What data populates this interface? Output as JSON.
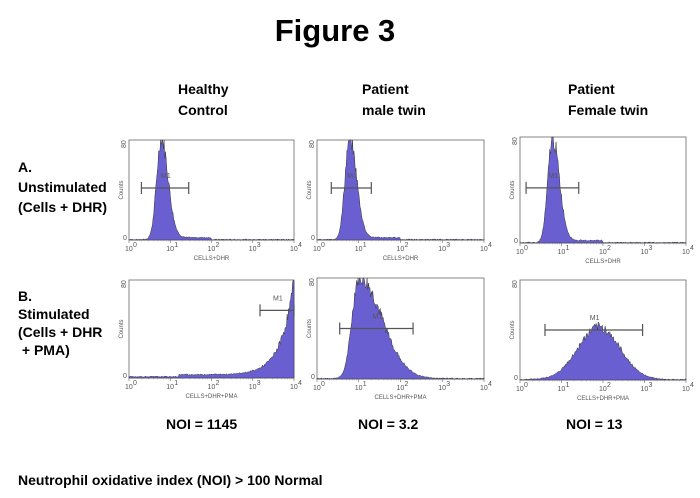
{
  "title": "Figure 3",
  "columns": [
    {
      "line1": "Healthy",
      "line2": "Control"
    },
    {
      "line1": "Patient",
      "line2": "male twin"
    },
    {
      "line1": "Patient",
      "line2": "Female twin"
    }
  ],
  "rows": [
    {
      "letter": "A.",
      "line1": "Unstimulated",
      "line2": "(Cells + DHR)",
      "line3": ""
    },
    {
      "letter": "B.",
      "line1": "Stimulated",
      "line2": "(Cells + DHR",
      "line3": " + PMA)"
    }
  ],
  "noi": [
    "NOI = 1145",
    "NOI = 3.2",
    "NOI = 13"
  ],
  "footer": "Neutrophil oxidative index (NOI) > 100 Normal",
  "colors": {
    "fill": "#6a5fd0",
    "outline": "#333333",
    "marker": "#555555"
  },
  "chart_data": [
    {
      "type": "area",
      "panel": "A / Healthy Control",
      "xlabel": "CELLS+DHR",
      "ylabel": "Counts",
      "xscale": "log",
      "xlim": [
        1,
        10000
      ],
      "ylim": [
        0,
        80
      ],
      "x_ticks": [
        "10^0",
        "10^1",
        "10^2",
        "10^3",
        "10^4"
      ],
      "y_ticks": [
        "0",
        "80"
      ],
      "peak_x": 6,
      "peak_count": 80,
      "marker": {
        "label": "M1",
        "range": [
          2,
          28
        ]
      }
    },
    {
      "type": "area",
      "panel": "A / Patient male twin",
      "xlabel": "CELLS+DHR",
      "ylabel": "Counts",
      "xscale": "log",
      "xlim": [
        1,
        10000
      ],
      "ylim": [
        0,
        80
      ],
      "x_ticks": [
        "10^0",
        "10^1",
        "10^2",
        "10^3",
        "10^4"
      ],
      "y_ticks": [
        "0",
        "80"
      ],
      "peak_x": 6,
      "peak_count": 80,
      "marker": {
        "label": "M1",
        "range": [
          2.2,
          20
        ]
      }
    },
    {
      "type": "area",
      "panel": "A / Patient Female twin",
      "xlabel": "CELLS+DHR",
      "ylabel": "Counts",
      "xscale": "log",
      "xlim": [
        1,
        10000
      ],
      "ylim": [
        0,
        80
      ],
      "x_ticks": [
        "10^0",
        "10^1",
        "10^2",
        "10^3",
        "10^4"
      ],
      "y_ticks": [
        "0",
        "80"
      ],
      "peak_x": 6,
      "peak_count": 78,
      "marker": {
        "label": "M1",
        "range": [
          1.4,
          26
        ]
      }
    },
    {
      "type": "area",
      "panel": "B / Healthy Control",
      "xlabel": "CELLS+DHR+PMA",
      "ylabel": "Counts",
      "xscale": "log",
      "xlim": [
        1,
        10000
      ],
      "ylim": [
        0,
        80
      ],
      "x_ticks": [
        "10^0",
        "10^1",
        "10^2",
        "10^3",
        "10^4"
      ],
      "y_ticks": [
        "0",
        "80"
      ],
      "peak_x": 10000,
      "peak_count": 78,
      "marker": {
        "label": "M1",
        "range": [
          1500,
          10000
        ]
      }
    },
    {
      "type": "area",
      "panel": "B / Patient male twin",
      "xlabel": "CELLS+DHR+PMA",
      "ylabel": "Counts",
      "xscale": "log",
      "xlim": [
        1,
        10000
      ],
      "ylim": [
        0,
        80
      ],
      "x_ticks": [
        "10^0",
        "10^1",
        "10^2",
        "10^3",
        "10^4"
      ],
      "y_ticks": [
        "0",
        "80"
      ],
      "peak_x": 10,
      "peak_count": 80,
      "marker": {
        "label": "M1",
        "range": [
          3.5,
          200
        ]
      }
    },
    {
      "type": "area",
      "panel": "B / Patient Female twin",
      "xlabel": "CELLS+DHR+PMA",
      "ylabel": "Counts",
      "xscale": "log",
      "xlim": [
        1,
        10000
      ],
      "ylim": [
        0,
        80
      ],
      "x_ticks": [
        "10^0",
        "10^1",
        "10^2",
        "10^3",
        "10^4"
      ],
      "y_ticks": [
        "0",
        "80"
      ],
      "peak_x": 80,
      "peak_count": 42,
      "marker": {
        "label": "M1",
        "range": [
          4,
          900
        ]
      }
    }
  ]
}
